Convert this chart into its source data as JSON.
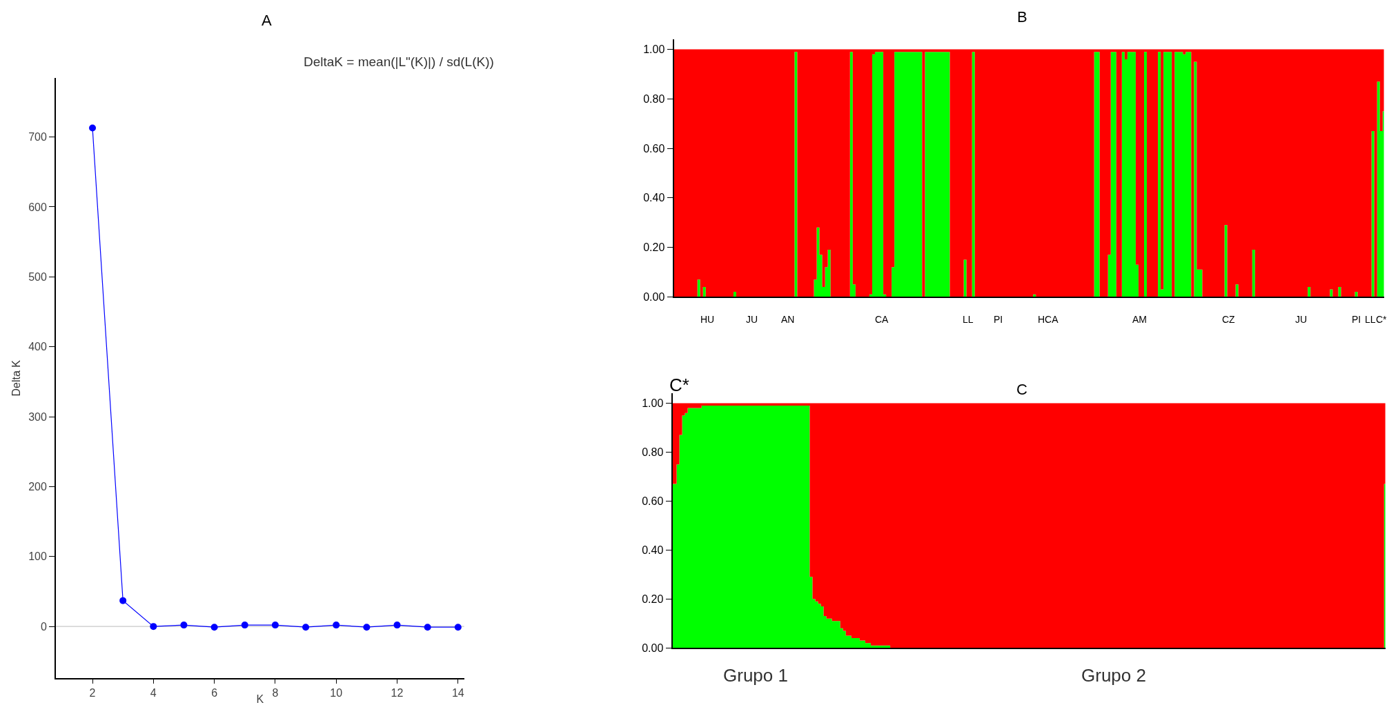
{
  "chart_data": [
    {
      "type": "line",
      "title": "A",
      "subtitle": "DeltaK = mean(|L\"(K)|) / sd(L(K))",
      "xlabel": "K",
      "ylabel": "Delta K",
      "x": [
        2,
        3,
        4,
        5,
        6,
        7,
        8,
        9,
        10,
        11,
        12,
        13,
        14
      ],
      "series": [
        {
          "color": "#0000ff",
          "values": [
            713,
            37,
            0,
            2,
            -1,
            2,
            2,
            -1,
            2,
            -1,
            2,
            -1,
            -1
          ]
        }
      ],
      "xlim": [
        0.8,
        14.2
      ],
      "ylim": [
        -74,
        784
      ],
      "xticks": [
        2,
        4,
        6,
        8,
        10,
        12,
        14
      ],
      "yticks": [
        0,
        100,
        200,
        300,
        400,
        500,
        600,
        700
      ],
      "ref_lines": [
        {
          "axis": "y",
          "value": 0,
          "color": "#c8c8c8"
        }
      ],
      "marker": "circle",
      "grid": false
    },
    {
      "type": "area",
      "title": "B",
      "stacked": true,
      "categories": [
        null,
        null,
        null,
        null,
        null,
        null,
        null,
        null,
        null,
        null,
        null,
        null,
        "HU",
        null,
        null,
        null,
        null,
        null,
        null,
        null,
        null,
        null,
        null,
        null,
        null,
        null,
        null,
        null,
        "JU",
        null,
        null,
        null,
        null,
        null,
        null,
        null,
        null,
        null,
        null,
        null,
        null,
        "AN",
        null,
        null,
        null,
        null,
        null,
        null,
        null,
        null,
        null,
        null,
        null,
        null,
        null,
        null,
        null,
        null,
        null,
        null,
        null,
        null,
        null,
        null,
        null,
        null,
        null,
        null,
        null,
        null,
        null,
        null,
        null,
        null,
        null,
        "CA",
        null,
        null,
        null,
        null,
        null,
        null,
        null,
        null,
        null,
        null,
        null,
        null,
        null,
        null,
        null,
        null,
        null,
        null,
        null,
        null,
        null,
        null,
        null,
        null,
        null,
        null,
        null,
        null,
        null,
        null,
        "LL",
        null,
        null,
        null,
        null,
        null,
        null,
        null,
        null,
        null,
        null,
        "PI",
        null,
        null,
        null,
        null,
        null,
        null,
        null,
        null,
        null,
        null,
        null,
        null,
        null,
        null,
        null,
        null,
        null,
        "HCA",
        null,
        null,
        null,
        null,
        null,
        null,
        null,
        null,
        null,
        null,
        null,
        null,
        null,
        null,
        null,
        null,
        null,
        null,
        null,
        null,
        null,
        null,
        null,
        null,
        null,
        null,
        null,
        null,
        null,
        null,
        null,
        null,
        "AM",
        null,
        null,
        null,
        null,
        null,
        null,
        null,
        null,
        null,
        null,
        null,
        null,
        null,
        null,
        null,
        null,
        null,
        null,
        null,
        null,
        null,
        null,
        null,
        null,
        null,
        null,
        null,
        null,
        null,
        null,
        null,
        "CZ",
        null,
        null,
        null,
        null,
        null,
        null,
        null,
        null,
        null,
        null,
        null,
        null,
        null,
        null,
        null,
        null,
        null,
        null,
        null,
        null,
        null,
        null,
        null,
        null,
        null,
        "JU",
        null,
        null,
        null,
        null,
        null,
        null,
        null,
        null,
        null,
        null,
        null,
        null,
        null,
        null,
        null,
        null,
        null,
        null,
        null,
        "PI",
        null,
        null,
        null,
        null,
        "LL",
        null,
        null,
        null,
        "C*",
        null
      ],
      "series": [
        {
          "color": "#00ff00",
          "values": [
            0,
            0,
            0,
            0,
            0,
            0,
            0,
            0,
            0,
            0.07,
            0,
            0.04,
            0,
            0,
            0,
            0,
            0,
            0,
            0,
            0,
            0,
            0,
            0.02,
            0,
            0,
            0,
            0,
            0,
            0,
            0,
            0,
            0,
            0,
            0,
            0,
            0,
            0,
            0,
            0,
            0,
            0,
            0,
            0,
            0,
            0.99,
            0,
            0,
            0,
            0,
            0,
            0,
            0.07,
            0.28,
            0.17,
            0.04,
            0.12,
            0.19,
            0,
            0,
            0,
            0,
            0,
            0,
            0,
            0.99,
            0.05,
            0,
            0,
            0,
            0,
            0,
            0.01,
            0.98,
            0.99,
            0.99,
            0.99,
            0.01,
            0,
            0,
            0.12,
            0.99,
            0.99,
            0.99,
            0.99,
            0.99,
            0.99,
            0.99,
            0.99,
            0.99,
            0.99,
            0,
            0.99,
            0.99,
            0.99,
            0.99,
            0.99,
            0.99,
            0.99,
            0.99,
            0.99,
            0,
            0,
            0,
            0,
            0,
            0.15,
            0,
            0,
            0.99,
            0,
            0,
            0,
            0,
            0,
            0,
            0,
            0,
            0,
            0,
            0,
            0,
            0,
            0,
            0,
            0,
            0,
            0,
            0,
            0,
            0,
            0.01,
            0,
            0,
            0,
            0,
            0,
            0,
            0,
            0,
            0,
            0,
            0,
            0,
            0,
            0,
            0,
            0,
            0,
            0,
            0,
            0,
            0,
            0.99,
            0.99,
            0,
            0,
            0,
            0.17,
            0.99,
            0.99,
            0,
            0,
            0.99,
            0.96,
            0.99,
            0.99,
            0.99,
            0.13,
            0,
            0,
            0.99,
            0,
            0,
            0,
            0,
            0.99,
            0.03,
            0.99,
            0.99,
            0.99,
            0,
            0.99,
            0.99,
            0.99,
            0.98,
            0.99,
            0.99,
            0,
            0.95,
            0.11,
            0.11,
            0,
            0,
            0,
            0,
            0,
            0,
            0,
            0,
            0.29,
            0,
            0,
            0,
            0.05,
            0,
            0,
            0,
            0,
            0,
            0.19,
            0,
            0,
            0,
            0,
            0,
            0,
            0,
            0,
            0,
            0,
            0,
            0,
            0,
            0,
            0,
            0,
            0,
            0,
            0,
            0.04,
            0,
            0,
            0,
            0,
            0,
            0,
            0,
            0.03,
            0,
            0,
            0.04,
            0,
            0,
            0,
            0,
            0,
            0.02,
            0,
            0,
            0,
            0,
            0,
            0.67,
            0,
            0.87,
            0.67,
            0.75
          ]
        },
        {
          "color": "#ff0000",
          "values": [
            1,
            1,
            1,
            1,
            1,
            1,
            1,
            1,
            1,
            0.93,
            1,
            0.96,
            1,
            1,
            1,
            1,
            1,
            1,
            1,
            1,
            1,
            1,
            0.98,
            1,
            1,
            1,
            1,
            1,
            1,
            1,
            1,
            1,
            1,
            1,
            1,
            1,
            1,
            1,
            1,
            1,
            1,
            1,
            1,
            1,
            0.01,
            1,
            1,
            1,
            1,
            1,
            1,
            0.93,
            0.72,
            0.83,
            0.96,
            0.88,
            0.81,
            1,
            1,
            1,
            1,
            1,
            1,
            1,
            0.01,
            0.95,
            1,
            1,
            1,
            1,
            1,
            0.99,
            0.02,
            0.01,
            0.01,
            0.01,
            0.99,
            1,
            1,
            0.88,
            0.01,
            0.01,
            0.01,
            0.01,
            0.01,
            0.01,
            0.01,
            0.01,
            0.01,
            0.01,
            1,
            0.01,
            0.01,
            0.01,
            0.01,
            0.01,
            0.01,
            0.01,
            0.01,
            0.01,
            1,
            1,
            1,
            1,
            1,
            0.85,
            1,
            1,
            0.01,
            1,
            1,
            1,
            1,
            1,
            1,
            1,
            1,
            1,
            1,
            1,
            1,
            1,
            1,
            1,
            1,
            1,
            1,
            1,
            1,
            1,
            0.99,
            1,
            1,
            1,
            1,
            1,
            1,
            1,
            1,
            1,
            1,
            1,
            1,
            1,
            1,
            1,
            1,
            1,
            1,
            1,
            1,
            1,
            0.01,
            0.01,
            1,
            1,
            1,
            0.83,
            0.01,
            0.01,
            1,
            1,
            0.01,
            0.04,
            0.01,
            0.01,
            0.01,
            0.87,
            1,
            1,
            0.01,
            1,
            1,
            1,
            1,
            0.01,
            0.97,
            0.01,
            0.01,
            0.01,
            1,
            0.01,
            0.01,
            0.01,
            0.02,
            0.01,
            0.01,
            1,
            0.05,
            0.89,
            0.89,
            1,
            1,
            1,
            1,
            1,
            1,
            1,
            1,
            0.71,
            1,
            1,
            1,
            0.95,
            1,
            1,
            1,
            1,
            1,
            0.81,
            1,
            1,
            1,
            1,
            1,
            1,
            1,
            1,
            1,
            1,
            1,
            1,
            1,
            1,
            1,
            1,
            1,
            1,
            1,
            0.96,
            1,
            1,
            1,
            1,
            1,
            1,
            1,
            0.97,
            1,
            1,
            0.96,
            1,
            1,
            1,
            1,
            1,
            0.98,
            1,
            1,
            1,
            1,
            1,
            0.33,
            1,
            0.13,
            0.33,
            0.25
          ]
        }
      ],
      "ylim": [
        0,
        1.04
      ],
      "yticks": [
        {
          "value": 0,
          "label": "0.00"
        },
        {
          "value": 0.2,
          "label": "0.20"
        },
        {
          "value": 0.4,
          "label": "0.40"
        },
        {
          "value": 0.6,
          "label": "0.60"
        },
        {
          "value": 0.8,
          "label": "0.80"
        },
        {
          "value": 1,
          "label": "1.00"
        }
      ],
      "grid": false
    },
    {
      "type": "area",
      "title": "C",
      "stacked": true,
      "annotations": [
        "C*"
      ],
      "categories": [
        null,
        null,
        null,
        null,
        null,
        null,
        null,
        null,
        null,
        null,
        null,
        null,
        null,
        null,
        null,
        null,
        null,
        null,
        null,
        null,
        null,
        null,
        null,
        null,
        null,
        null,
        null,
        null,
        null,
        null,
        "Grupo 1",
        null,
        null,
        null,
        null,
        null,
        null,
        null,
        null,
        null,
        null,
        null,
        null,
        null,
        null,
        null,
        null,
        null,
        null,
        null,
        null,
        null,
        null,
        null,
        null,
        null,
        null,
        null,
        null,
        null,
        null,
        null,
        null,
        null,
        null,
        null,
        null,
        null,
        null,
        null,
        null,
        null,
        null,
        null,
        null,
        null,
        null,
        null,
        null,
        null,
        null,
        null,
        null,
        null,
        null,
        null,
        null,
        null,
        null,
        null,
        null,
        null,
        null,
        null,
        null,
        null,
        null,
        null,
        null,
        null,
        null,
        null,
        null,
        null,
        null,
        null,
        null,
        null,
        null,
        null,
        null,
        null,
        null,
        null,
        null,
        null,
        null,
        null,
        null,
        null,
        null,
        null,
        null,
        null,
        null,
        null,
        null,
        null,
        null,
        null,
        null,
        null,
        null,
        null,
        null,
        null,
        null,
        null,
        null,
        null,
        null,
        null,
        null,
        null,
        null,
        null,
        null,
        null,
        null,
        null,
        null,
        null,
        null,
        null,
        null,
        null,
        null,
        null,
        null,
        "Grupo 2",
        null,
        null,
        null,
        null,
        null,
        null,
        null,
        null,
        null,
        null,
        null,
        null,
        null,
        null,
        null,
        null,
        null,
        null,
        null,
        null,
        null,
        null,
        null,
        null,
        null,
        null,
        null,
        null,
        null,
        null,
        null,
        null,
        null,
        null,
        null,
        null,
        null,
        null,
        null,
        null,
        null,
        null,
        null,
        null,
        null,
        null,
        null,
        null,
        null,
        null,
        null,
        null,
        null,
        null,
        null,
        null,
        null,
        null,
        null,
        null,
        null,
        null,
        null,
        null,
        null,
        null,
        null,
        null,
        null,
        null,
        null,
        null,
        null,
        null,
        null,
        null,
        null,
        null,
        null,
        null,
        null,
        null,
        null,
        null,
        null,
        null,
        null,
        null,
        null,
        null,
        null,
        null,
        null,
        null,
        null,
        null,
        null,
        null
      ],
      "series": [
        {
          "color": "#00ff00",
          "values": [
            0.67,
            0.67,
            0.75,
            0.87,
            0.95,
            0.96,
            0.98,
            0.98,
            0.98,
            0.98,
            0.98,
            0.99,
            0.99,
            0.99,
            0.99,
            0.99,
            0.99,
            0.99,
            0.99,
            0.99,
            0.99,
            0.99,
            0.99,
            0.99,
            0.99,
            0.99,
            0.99,
            0.99,
            0.99,
            0.99,
            0.99,
            0.99,
            0.99,
            0.99,
            0.99,
            0.99,
            0.99,
            0.99,
            0.99,
            0.99,
            0.99,
            0.99,
            0.99,
            0.99,
            0.99,
            0.99,
            0.99,
            0.99,
            0.99,
            0.99,
            0.29,
            0.2,
            0.19,
            0.18,
            0.17,
            0.13,
            0.12,
            0.12,
            0.11,
            0.11,
            0.11,
            0.08,
            0.07,
            0.05,
            0.05,
            0.04,
            0.04,
            0.04,
            0.03,
            0.03,
            0.02,
            0.02,
            0.01,
            0.01,
            0.01,
            0.01,
            0.01,
            0.01,
            0.01,
            0,
            0,
            0,
            0,
            0,
            0,
            0,
            0,
            0,
            0,
            0,
            0,
            0,
            0,
            0,
            0,
            0,
            0,
            0,
            0,
            0,
            0,
            0,
            0,
            0,
            0,
            0,
            0,
            0,
            0,
            0,
            0,
            0,
            0,
            0,
            0,
            0,
            0,
            0,
            0,
            0,
            0,
            0,
            0,
            0,
            0,
            0,
            0,
            0,
            0,
            0,
            0,
            0,
            0,
            0,
            0,
            0,
            0,
            0,
            0,
            0,
            0,
            0,
            0,
            0,
            0,
            0,
            0,
            0,
            0,
            0,
            0,
            0,
            0,
            0,
            0,
            0,
            0,
            0,
            0,
            0,
            0,
            0,
            0,
            0,
            0,
            0,
            0,
            0,
            0,
            0,
            0,
            0,
            0,
            0,
            0,
            0,
            0,
            0,
            0,
            0,
            0,
            0,
            0,
            0,
            0,
            0,
            0,
            0,
            0,
            0,
            0,
            0,
            0,
            0,
            0,
            0,
            0,
            0,
            0,
            0,
            0,
            0,
            0,
            0,
            0,
            0,
            0,
            0,
            0,
            0,
            0,
            0,
            0,
            0,
            0,
            0,
            0,
            0,
            0,
            0,
            0,
            0,
            0,
            0,
            0,
            0,
            0,
            0,
            0,
            0,
            0,
            0,
            0,
            0,
            0,
            0,
            0,
            0,
            0,
            0,
            0,
            0,
            0,
            0,
            0,
            0,
            0,
            0,
            0,
            0,
            0,
            0,
            0,
            0,
            0,
            0,
            0,
            0.67
          ]
        },
        {
          "color": "#ff0000",
          "values": [
            0.33,
            0.33,
            0.25,
            0.13,
            0.05,
            0.04,
            0.02,
            0.02,
            0.02,
            0.02,
            0.02,
            0.01,
            0.01,
            0.01,
            0.01,
            0.01,
            0.01,
            0.01,
            0.01,
            0.01,
            0.01,
            0.01,
            0.01,
            0.01,
            0.01,
            0.01,
            0.01,
            0.01,
            0.01,
            0.01,
            0.01,
            0.01,
            0.01,
            0.01,
            0.01,
            0.01,
            0.01,
            0.01,
            0.01,
            0.01,
            0.01,
            0.01,
            0.01,
            0.01,
            0.01,
            0.01,
            0.01,
            0.01,
            0.01,
            0.01,
            0.71,
            0.8,
            0.81,
            0.82,
            0.83,
            0.87,
            0.88,
            0.88,
            0.89,
            0.89,
            0.89,
            0.92,
            0.93,
            0.95,
            0.95,
            0.96,
            0.96,
            0.96,
            0.97,
            0.97,
            0.98,
            0.98,
            0.99,
            0.99,
            0.99,
            0.99,
            0.99,
            0.99,
            0.99,
            1,
            1,
            1,
            1,
            1,
            1,
            1,
            1,
            1,
            1,
            1,
            1,
            1,
            1,
            1,
            1,
            1,
            1,
            1,
            1,
            1,
            1,
            1,
            1,
            1,
            1,
            1,
            1,
            1,
            1,
            1,
            1,
            1,
            1,
            1,
            1,
            1,
            1,
            1,
            1,
            1,
            1,
            1,
            1,
            1,
            1,
            1,
            1,
            1,
            1,
            1,
            1,
            1,
            1,
            1,
            1,
            1,
            1,
            1,
            1,
            1,
            1,
            1,
            1,
            1,
            1,
            1,
            1,
            1,
            1,
            1,
            1,
            1,
            1,
            1,
            1,
            1,
            1,
            1,
            1,
            1,
            1,
            1,
            1,
            1,
            1,
            1,
            1,
            1,
            1,
            1,
            1,
            1,
            1,
            1,
            1,
            1,
            1,
            1,
            1,
            1,
            1,
            1,
            1,
            1,
            1,
            1,
            1,
            1,
            1,
            1,
            1,
            1,
            1,
            1,
            1,
            1,
            1,
            1,
            1,
            1,
            1,
            1,
            1,
            1,
            1,
            1,
            1,
            1,
            1,
            1,
            1,
            1,
            1,
            1,
            1,
            1,
            1,
            1,
            1,
            1,
            1,
            1,
            1,
            1,
            1,
            1,
            1,
            1,
            1,
            1,
            1,
            1,
            1,
            1,
            1,
            1,
            1,
            1,
            1,
            1,
            1,
            1,
            1,
            1,
            1,
            1,
            1,
            1,
            1,
            1,
            1,
            1,
            1,
            1,
            1,
            1,
            1,
            0.33
          ]
        }
      ],
      "ylim": [
        0,
        1.04
      ],
      "yticks": [
        {
          "value": 0,
          "label": "0.00"
        },
        {
          "value": 0.2,
          "label": "0.20"
        },
        {
          "value": 0.4,
          "label": "0.40"
        },
        {
          "value": 0.6,
          "label": "0.60"
        },
        {
          "value": 0.8,
          "label": "0.80"
        },
        {
          "value": 1,
          "label": "1.00"
        }
      ],
      "grid": false
    }
  ]
}
